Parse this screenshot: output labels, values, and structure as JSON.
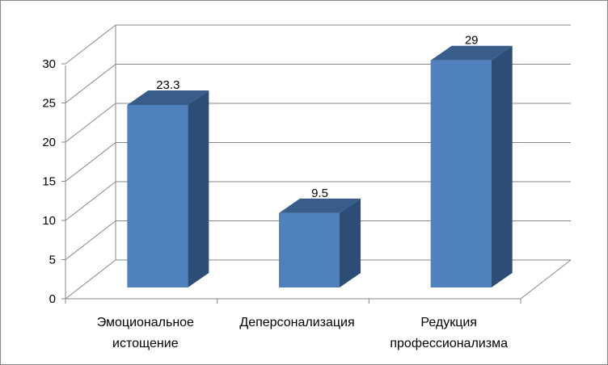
{
  "chart_data": {
    "type": "bar",
    "style": "3d-column",
    "categories": [
      [
        "Эмоциональное",
        "истощение"
      ],
      [
        "Деперсонализация"
      ],
      [
        "Редукция",
        "профессионализма"
      ]
    ],
    "values": [
      23.3,
      9.5,
      29
    ],
    "data_labels": [
      "23.3",
      "9.5",
      "29"
    ],
    "y_ticks": [
      0,
      5,
      10,
      15,
      20,
      25,
      30
    ],
    "ylim": [
      0,
      30
    ],
    "grid": true,
    "legend": false,
    "title": "",
    "xlabel": "",
    "ylabel": "",
    "colors": {
      "bar_front": "#4f81bd",
      "bar_side": "#2c4d75",
      "bar_top": "#385d8a",
      "grid": "#868686",
      "axis": "#868686"
    }
  }
}
